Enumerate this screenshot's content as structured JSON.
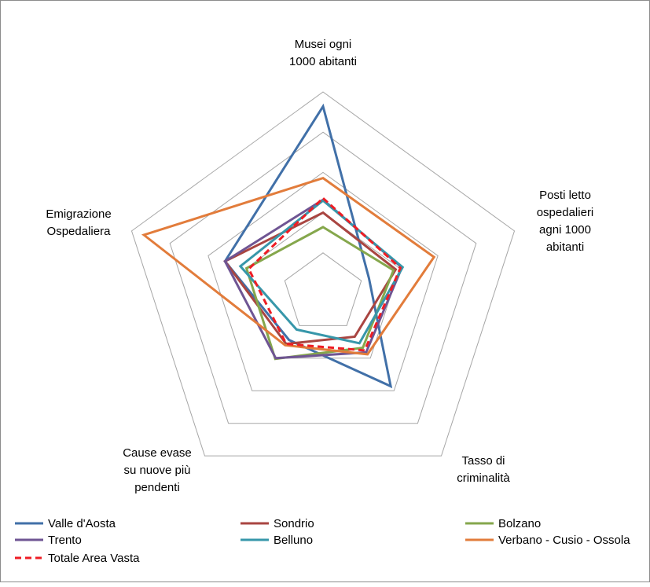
{
  "chart_data": {
    "type": "radar",
    "title": "",
    "axes": [
      [
        "Musei ogni",
        "1000 abitanti"
      ],
      [
        "Posti letto",
        "ospedalieri",
        "agni 1000",
        "abitanti"
      ],
      [
        "Tasso di",
        "criminalità"
      ],
      [
        "Cause evase",
        "su nuove più",
        "pendenti"
      ],
      [
        "Emigrazione",
        "Ospedaliera"
      ]
    ],
    "rlim": [
      0,
      250
    ],
    "gridlines": [
      50,
      100,
      150,
      200,
      250
    ],
    "series": [
      {
        "name": "Valle d'Aosta",
        "color": "#4170a8",
        "dash": false,
        "values": [
          232,
          60,
          143,
          72,
          128
        ]
      },
      {
        "name": "Sondrio",
        "color": "#a94541",
        "dash": false,
        "values": [
          100,
          95,
          67,
          78,
          128
        ]
      },
      {
        "name": "Bolzano",
        "color": "#85a74c",
        "dash": false,
        "values": [
          82,
          92,
          84,
          101,
          100
        ]
      },
      {
        "name": "Trento",
        "color": "#6f5593",
        "dash": false,
        "values": [
          116,
          103,
          91,
          100,
          128
        ]
      },
      {
        "name": "Belluno",
        "color": "#3797aa",
        "dash": false,
        "values": [
          115,
          104,
          77,
          56,
          108
        ]
      },
      {
        "name": "Verbano - Cusio - Ossola",
        "color": "#e27c3b",
        "dash": false,
        "values": [
          143,
          145,
          94,
          80,
          234
        ]
      },
      {
        "name": "Totale Area Vasta",
        "color": "#ee1d24",
        "dash": true,
        "values": [
          118,
          101,
          88,
          78,
          97
        ]
      }
    ]
  }
}
